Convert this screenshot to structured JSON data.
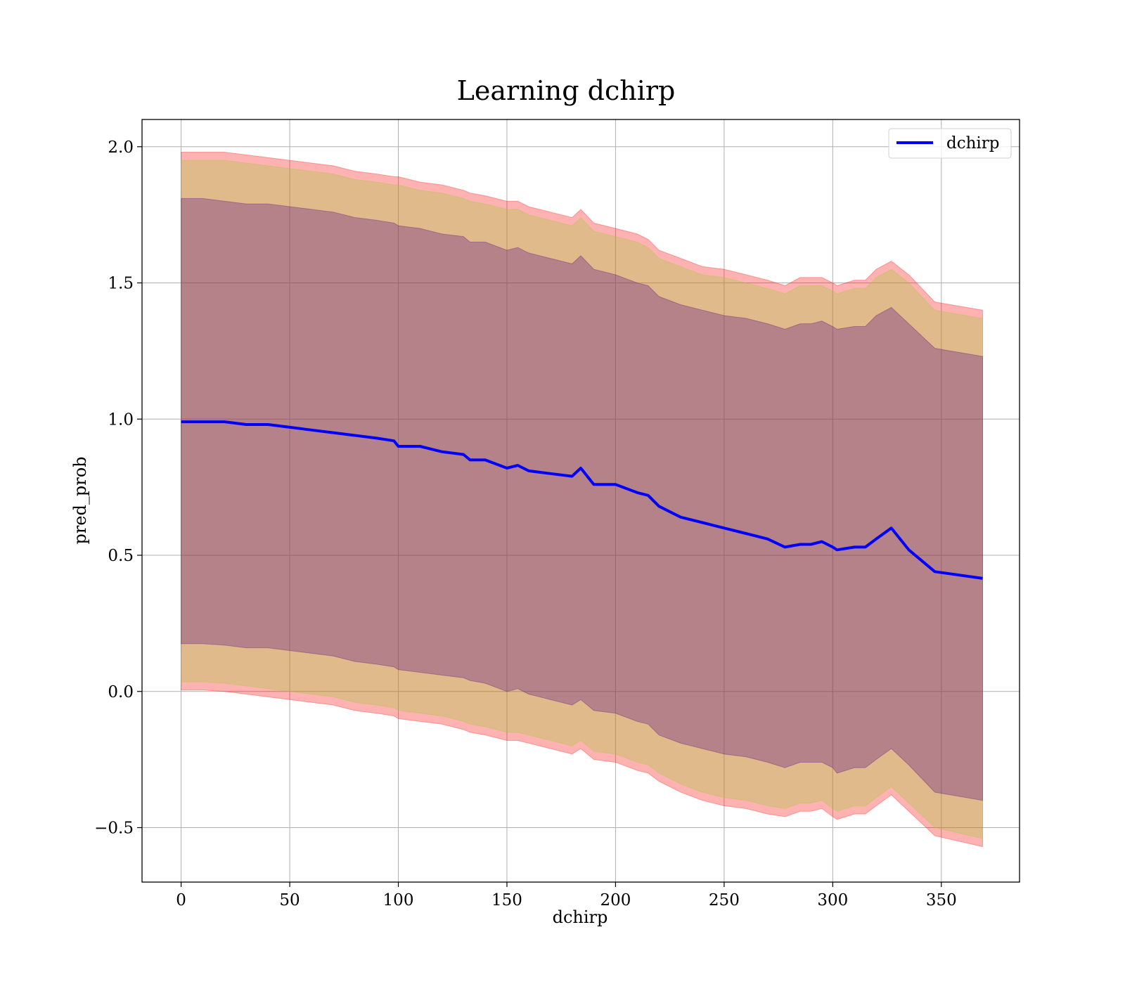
{
  "chart_data": {
    "type": "area",
    "title": "Learning dchirp",
    "xlabel": "dchirp",
    "ylabel": "pred_prob",
    "xlim": [
      -18,
      386
    ],
    "ylim": [
      -0.7,
      2.1
    ],
    "grid": true,
    "legend_placement": "top-right",
    "x_ticks": [
      0,
      50,
      100,
      150,
      200,
      250,
      300,
      350
    ],
    "y_ticks": [
      -0.5,
      0.0,
      0.5,
      1.0,
      1.5,
      2.0
    ],
    "x_tick_labels": [
      "0",
      "50",
      "100",
      "150",
      "200",
      "250",
      "300",
      "350"
    ],
    "y_tick_labels": [
      "−0.5",
      "0.0",
      "0.5",
      "1.0",
      "1.5",
      "2.0"
    ],
    "x": [
      0,
      10,
      20,
      30,
      40,
      50,
      60,
      70,
      80,
      90,
      98,
      100,
      110,
      120,
      130,
      133,
      140,
      150,
      155,
      160,
      170,
      180,
      184,
      190,
      200,
      210,
      215,
      220,
      230,
      240,
      250,
      260,
      270,
      278,
      285,
      290,
      295,
      300,
      302,
      310,
      315,
      320,
      327,
      335,
      347,
      369
    ],
    "series": [
      {
        "name": "dchirp",
        "color": "#0000ff",
        "values": [
          0.99,
          0.99,
          0.99,
          0.98,
          0.98,
          0.97,
          0.96,
          0.95,
          0.94,
          0.93,
          0.92,
          0.9,
          0.9,
          0.88,
          0.87,
          0.85,
          0.85,
          0.82,
          0.83,
          0.81,
          0.8,
          0.79,
          0.82,
          0.76,
          0.76,
          0.73,
          0.72,
          0.68,
          0.64,
          0.62,
          0.6,
          0.58,
          0.56,
          0.53,
          0.54,
          0.54,
          0.55,
          0.53,
          0.52,
          0.53,
          0.53,
          0.56,
          0.6,
          0.52,
          0.44,
          0.415
        ]
      }
    ],
    "bands": [
      {
        "color": "#ff0000",
        "opacity": 0.3,
        "upper": [
          1.98,
          1.98,
          1.98,
          1.97,
          1.96,
          1.95,
          1.94,
          1.93,
          1.91,
          1.9,
          1.89,
          1.89,
          1.87,
          1.86,
          1.84,
          1.83,
          1.82,
          1.8,
          1.8,
          1.78,
          1.76,
          1.74,
          1.77,
          1.72,
          1.7,
          1.68,
          1.66,
          1.62,
          1.59,
          1.56,
          1.55,
          1.53,
          1.51,
          1.49,
          1.52,
          1.52,
          1.52,
          1.5,
          1.49,
          1.51,
          1.51,
          1.55,
          1.58,
          1.53,
          1.43,
          1.4
        ],
        "lower": [
          0.005,
          0.005,
          0.0,
          -0.01,
          -0.02,
          -0.03,
          -0.04,
          -0.05,
          -0.07,
          -0.08,
          -0.09,
          -0.1,
          -0.11,
          -0.12,
          -0.14,
          -0.15,
          -0.16,
          -0.18,
          -0.18,
          -0.19,
          -0.21,
          -0.23,
          -0.21,
          -0.25,
          -0.26,
          -0.29,
          -0.3,
          -0.33,
          -0.37,
          -0.4,
          -0.42,
          -0.43,
          -0.45,
          -0.46,
          -0.44,
          -0.44,
          -0.43,
          -0.46,
          -0.47,
          -0.45,
          -0.45,
          -0.42,
          -0.38,
          -0.44,
          -0.53,
          -0.57
        ]
      },
      {
        "color": "#9acd32",
        "opacity": 0.3,
        "upper": [
          1.95,
          1.95,
          1.95,
          1.94,
          1.93,
          1.92,
          1.91,
          1.9,
          1.88,
          1.87,
          1.86,
          1.86,
          1.84,
          1.83,
          1.81,
          1.8,
          1.79,
          1.77,
          1.77,
          1.75,
          1.73,
          1.71,
          1.74,
          1.69,
          1.67,
          1.65,
          1.63,
          1.59,
          1.56,
          1.53,
          1.52,
          1.5,
          1.48,
          1.46,
          1.49,
          1.49,
          1.49,
          1.47,
          1.46,
          1.48,
          1.48,
          1.52,
          1.55,
          1.5,
          1.4,
          1.37
        ],
        "lower": [
          0.035,
          0.035,
          0.03,
          0.02,
          0.01,
          0.0,
          -0.01,
          -0.02,
          -0.04,
          -0.05,
          -0.06,
          -0.07,
          -0.08,
          -0.09,
          -0.11,
          -0.12,
          -0.13,
          -0.15,
          -0.15,
          -0.16,
          -0.18,
          -0.2,
          -0.18,
          -0.22,
          -0.23,
          -0.26,
          -0.27,
          -0.3,
          -0.34,
          -0.37,
          -0.39,
          -0.4,
          -0.42,
          -0.43,
          -0.41,
          -0.41,
          -0.4,
          -0.43,
          -0.44,
          -0.42,
          -0.42,
          -0.39,
          -0.35,
          -0.41,
          -0.5,
          -0.54
        ]
      },
      {
        "color": "#4b0082",
        "opacity": 0.3,
        "upper": [
          1.81,
          1.81,
          1.8,
          1.79,
          1.79,
          1.78,
          1.77,
          1.76,
          1.74,
          1.73,
          1.72,
          1.71,
          1.7,
          1.68,
          1.67,
          1.65,
          1.65,
          1.62,
          1.63,
          1.61,
          1.59,
          1.57,
          1.6,
          1.55,
          1.53,
          1.5,
          1.49,
          1.45,
          1.42,
          1.4,
          1.38,
          1.37,
          1.35,
          1.33,
          1.35,
          1.35,
          1.36,
          1.34,
          1.33,
          1.34,
          1.34,
          1.38,
          1.41,
          1.35,
          1.26,
          1.23
        ],
        "lower": [
          0.175,
          0.175,
          0.17,
          0.16,
          0.16,
          0.15,
          0.14,
          0.13,
          0.11,
          0.1,
          0.09,
          0.08,
          0.07,
          0.06,
          0.05,
          0.04,
          0.03,
          0.0,
          0.01,
          -0.01,
          -0.03,
          -0.05,
          -0.03,
          -0.07,
          -0.08,
          -0.11,
          -0.12,
          -0.16,
          -0.19,
          -0.21,
          -0.23,
          -0.24,
          -0.26,
          -0.28,
          -0.26,
          -0.26,
          -0.26,
          -0.28,
          -0.3,
          -0.28,
          -0.28,
          -0.25,
          -0.21,
          -0.27,
          -0.37,
          -0.4
        ]
      }
    ]
  }
}
